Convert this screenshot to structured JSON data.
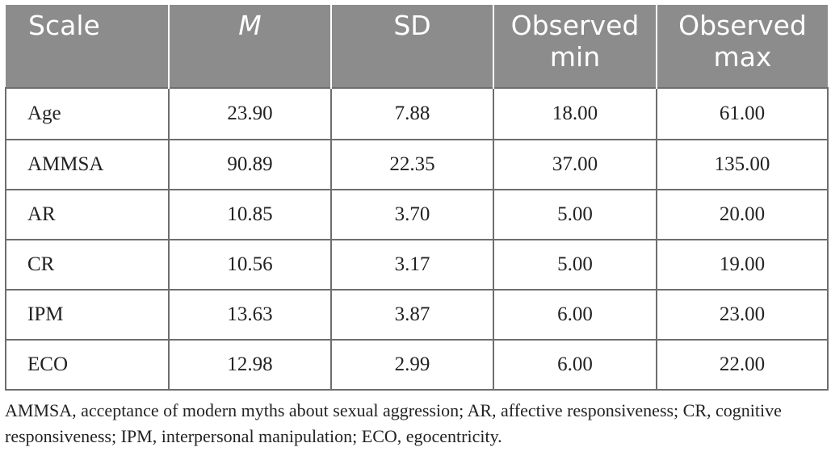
{
  "table": {
    "headers": [
      "Scale",
      "M",
      "SD",
      "Observed min",
      "Observed max"
    ],
    "rows": [
      [
        "Age",
        "23.90",
        "7.88",
        "18.00",
        "61.00"
      ],
      [
        "AMMSA",
        "90.89",
        "22.35",
        "37.00",
        "135.00"
      ],
      [
        "AR",
        "10.85",
        "3.70",
        "5.00",
        "20.00"
      ],
      [
        "CR",
        "10.56",
        "3.17",
        "5.00",
        "19.00"
      ],
      [
        "IPM",
        "13.63",
        "3.87",
        "6.00",
        "23.00"
      ],
      [
        "ECO",
        "12.98",
        "2.99",
        "6.00",
        "22.00"
      ]
    ]
  },
  "footnote": "AMMSA, acceptance of modern myths about sexual aggression; AR, affective responsiveness; CR, cognitive responsiveness; IPM, interpersonal manipulation; ECO, egocentricity.",
  "colors": {
    "header_bg": "#8c8c8c",
    "header_text": "#ffffff",
    "grid": "#6e6e6e"
  }
}
